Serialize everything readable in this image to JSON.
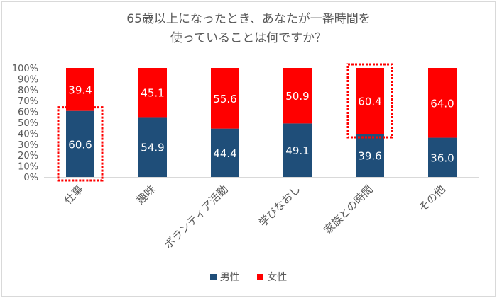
{
  "chart_data": {
    "type": "bar",
    "stacked": true,
    "title_lines": [
      "65歳以上になったとき、あなたが一番時間を",
      "使っていることは何ですか？"
    ],
    "categories": [
      "仕事",
      "趣味",
      "ボランティア活動",
      "学びなおし",
      "家族との時間",
      "その他"
    ],
    "series": [
      {
        "name": "男性",
        "color": "#1f4e79",
        "values": [
          60.6,
          54.9,
          44.4,
          49.1,
          39.6,
          36.0
        ],
        "labels": [
          "60.6",
          "54.9",
          "44.4",
          "49.1",
          "39.6",
          "36.0"
        ]
      },
      {
        "name": "女性",
        "color": "#ff0000",
        "values": [
          39.4,
          45.1,
          55.6,
          50.9,
          60.4,
          64.0
        ],
        "labels": [
          "39.4",
          "45.1",
          "55.6",
          "50.9",
          "60.4",
          "64.0"
        ]
      }
    ],
    "y_ticks": [
      "0%",
      "10%",
      "20%",
      "30%",
      "40%",
      "50%",
      "60%",
      "70%",
      "80%",
      "90%",
      "100%"
    ],
    "ylim": [
      0,
      100
    ],
    "grid": false,
    "legend": "bottom",
    "highlights": [
      {
        "category": "仕事",
        "series": "男性"
      },
      {
        "category": "家族との時間",
        "series": "女性"
      }
    ]
  }
}
